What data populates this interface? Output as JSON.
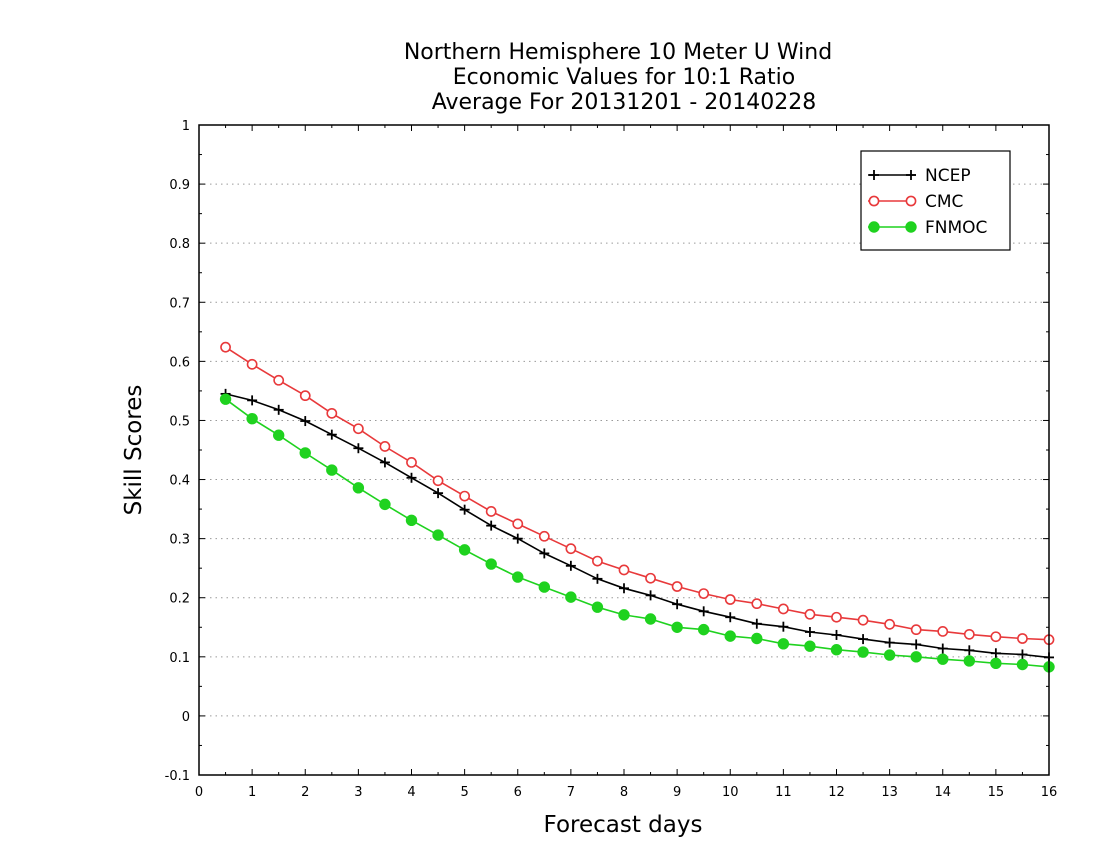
{
  "chart_data": {
    "type": "line",
    "title_lines": [
      "Northern Hemisphere 10 Meter U Wind",
      "Economic Values for 10:1 Ratio",
      "Average For 20131201 - 20140228"
    ],
    "xlabel": "Forecast days",
    "ylabel": "Skill Scores",
    "xlim": [
      0,
      16
    ],
    "ylim": [
      -0.1,
      1
    ],
    "x_ticks": [
      0,
      1,
      2,
      3,
      4,
      5,
      6,
      7,
      8,
      9,
      10,
      11,
      12,
      13,
      14,
      15,
      16
    ],
    "x_tick_labels": [
      "0",
      "1",
      "2",
      "3",
      "4",
      "5",
      "6",
      "7",
      "8",
      "9",
      "10",
      "11",
      "12",
      "13",
      "14",
      "15",
      "16"
    ],
    "y_ticks": [
      -0.1,
      0,
      0.1,
      0.2,
      0.3,
      0.4,
      0.5,
      0.6,
      0.7,
      0.8,
      0.9,
      1
    ],
    "y_tick_labels": [
      "-0.1",
      "0",
      "0.1",
      "0.2",
      "0.3",
      "0.4",
      "0.5",
      "0.6",
      "0.7",
      "0.8",
      "0.9",
      "1"
    ],
    "grid": "horizontal dotted",
    "legend_position": "top-right",
    "x": [
      0.5,
      1,
      1.5,
      2,
      2.5,
      3,
      3.5,
      4,
      4.5,
      5,
      5.5,
      6,
      6.5,
      7,
      7.5,
      8,
      8.5,
      9,
      9.5,
      10,
      10.5,
      11,
      11.5,
      12,
      12.5,
      13,
      13.5,
      14,
      14.5,
      15,
      15.5,
      16
    ],
    "series": [
      {
        "name": "NCEP",
        "color": "#000000",
        "marker": "plus",
        "values": [
          0.545,
          0.534,
          0.518,
          0.499,
          0.476,
          0.453,
          0.429,
          0.403,
          0.377,
          0.349,
          0.322,
          0.3,
          0.275,
          0.254,
          0.232,
          0.216,
          0.204,
          0.189,
          0.177,
          0.167,
          0.156,
          0.151,
          0.142,
          0.137,
          0.13,
          0.124,
          0.121,
          0.114,
          0.111,
          0.106,
          0.104,
          0.099
        ]
      },
      {
        "name": "CMC",
        "color": "#e8393b",
        "marker": "open-circle",
        "values": [
          0.624,
          0.595,
          0.568,
          0.542,
          0.512,
          0.486,
          0.456,
          0.429,
          0.398,
          0.372,
          0.346,
          0.325,
          0.304,
          0.283,
          0.262,
          0.247,
          0.233,
          0.219,
          0.207,
          0.197,
          0.19,
          0.181,
          0.172,
          0.167,
          0.162,
          0.155,
          0.146,
          0.143,
          0.138,
          0.134,
          0.131,
          0.129
        ]
      },
      {
        "name": "FNMOC",
        "color": "#1fd21f",
        "marker": "filled-circle",
        "values": [
          0.536,
          0.503,
          0.475,
          0.445,
          0.416,
          0.386,
          0.358,
          0.331,
          0.306,
          0.281,
          0.257,
          0.235,
          0.218,
          0.201,
          0.184,
          0.171,
          0.164,
          0.15,
          0.146,
          0.135,
          0.131,
          0.122,
          0.118,
          0.112,
          0.108,
          0.103,
          0.1,
          0.096,
          0.093,
          0.089,
          0.087,
          0.083
        ]
      }
    ]
  }
}
